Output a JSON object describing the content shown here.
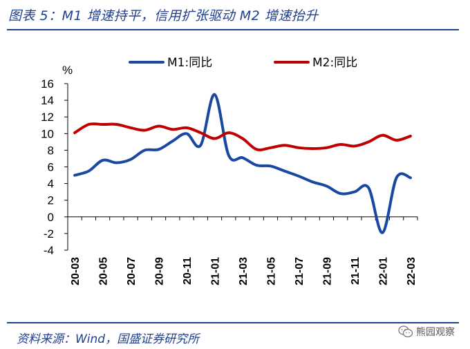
{
  "header": {
    "title": "图表 5：M1 增速持平，信用扩张驱动 M2 增速抬升"
  },
  "footer": {
    "source": "资料来源：Wind，国盛证券研究所",
    "watermark": "熊园观察"
  },
  "colors": {
    "m1": "#1a47a0",
    "m2": "#c00000",
    "brand": "#1f3f8f"
  },
  "chart_data": {
    "type": "line",
    "title": "",
    "ylabel": "%",
    "xlabel": "",
    "ylim": [
      -4,
      16
    ],
    "yticks": [
      -4,
      -2,
      0,
      2,
      4,
      6,
      8,
      10,
      12,
      14,
      16
    ],
    "x": [
      "20-03",
      "20-04",
      "20-05",
      "20-06",
      "20-07",
      "20-08",
      "20-09",
      "20-10",
      "20-11",
      "20-12",
      "21-01",
      "21-02",
      "21-03",
      "21-04",
      "21-05",
      "21-06",
      "21-07",
      "21-08",
      "21-09",
      "21-10",
      "21-11",
      "21-12",
      "22-01",
      "22-02",
      "22-03"
    ],
    "xtick_labels": [
      "20-03",
      "20-05",
      "20-07",
      "20-09",
      "20-11",
      "21-01",
      "21-03",
      "21-05",
      "21-07",
      "21-09",
      "21-11",
      "22-01",
      "22-03"
    ],
    "series": [
      {
        "name": "M1:同比",
        "values": [
          5.0,
          5.5,
          6.8,
          6.5,
          6.9,
          8.0,
          8.1,
          9.1,
          10.0,
          8.6,
          14.7,
          7.4,
          7.1,
          6.2,
          6.1,
          5.5,
          4.9,
          4.2,
          3.7,
          2.8,
          3.0,
          3.5,
          -1.9,
          4.7,
          4.7
        ]
      },
      {
        "name": "M2:同比",
        "values": [
          10.1,
          11.1,
          11.1,
          11.1,
          10.7,
          10.4,
          10.9,
          10.5,
          10.7,
          10.1,
          9.4,
          10.1,
          9.4,
          8.1,
          8.3,
          8.6,
          8.3,
          8.2,
          8.3,
          8.7,
          8.5,
          9.0,
          9.8,
          9.2,
          9.7
        ]
      }
    ],
    "legend": "top"
  }
}
